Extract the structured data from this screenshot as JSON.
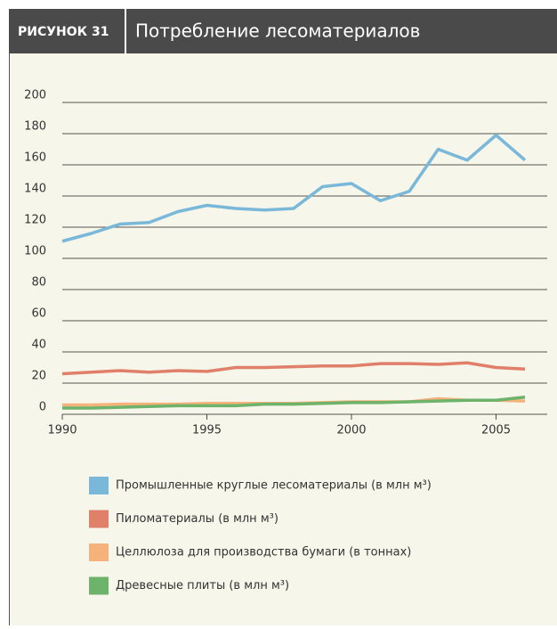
{
  "header": {
    "label": "РИСУНОК 31"
  },
  "chart_data": {
    "type": "line",
    "title": "Потребление лесоматериалов",
    "x": [
      1990,
      1991,
      1992,
      1993,
      1994,
      1995,
      1996,
      1997,
      1998,
      1999,
      2000,
      2001,
      2002,
      2003,
      2004,
      2005,
      2006
    ],
    "xlim": [
      1990,
      2006
    ],
    "xticks": [
      1990,
      1995,
      2000,
      2005
    ],
    "ylim": [
      0,
      200
    ],
    "yticks": [
      0,
      20,
      40,
      60,
      80,
      100,
      120,
      140,
      160,
      180,
      200
    ],
    "grid": true,
    "legend": "bottom",
    "series": [
      {
        "name": "Промышленные круглые лесоматериалы (в млн м³)",
        "color": "#7ab8d9",
        "values": [
          111,
          116,
          122,
          123,
          130,
          134,
          132,
          131,
          132,
          146,
          148,
          137,
          143,
          170,
          163,
          179,
          163
        ]
      },
      {
        "name": "Пиломатериалы (в млн м³)",
        "color": "#e0806a",
        "values": [
          26,
          27,
          28,
          27,
          28,
          27.5,
          30,
          30,
          30.5,
          31,
          31,
          32.5,
          32.5,
          32,
          33,
          30,
          29
        ]
      },
      {
        "name": "Целлюлоза для производства бумаги (в тоннах)",
        "color": "#f5b27a",
        "values": [
          6,
          6,
          6.5,
          6.5,
          6.5,
          7,
          7,
          7,
          7,
          7.5,
          8,
          8,
          8,
          10,
          9,
          9,
          8.5
        ]
      },
      {
        "name": "Древесные плиты (в млн м³)",
        "color": "#6db36b",
        "values": [
          4,
          4,
          4.5,
          5,
          5.5,
          5.5,
          5.5,
          6.5,
          6.5,
          7,
          7.5,
          7.5,
          8,
          8.5,
          9,
          9,
          11
        ]
      }
    ]
  }
}
